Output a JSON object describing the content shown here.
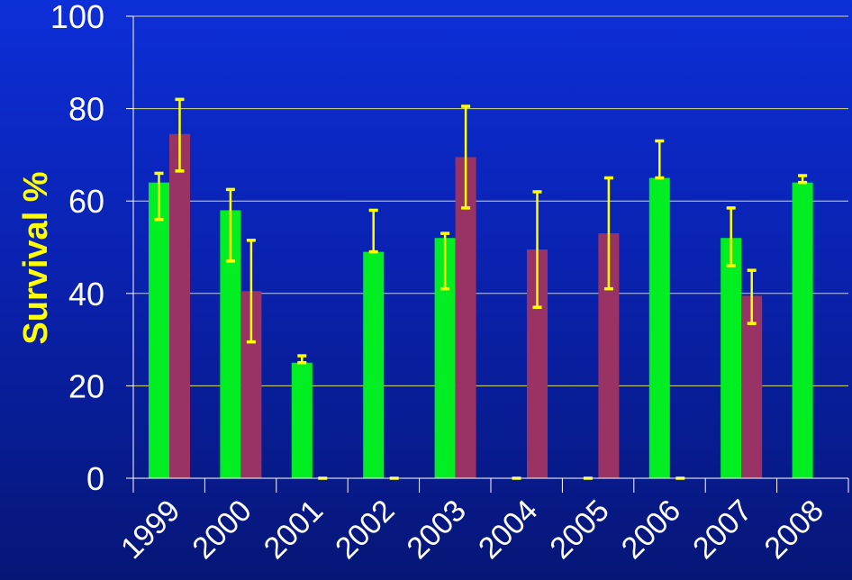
{
  "chart_data": {
    "type": "bar",
    "title": "",
    "xlabel": "",
    "ylabel": "Survival %",
    "ylim": [
      0,
      100
    ],
    "yticks": [
      "0",
      "20",
      "40",
      "60",
      "80",
      "100"
    ],
    "categories": [
      "1999",
      "2000",
      "2001",
      "2002",
      "2003",
      "2004",
      "2005",
      "2006",
      "2007",
      "2008"
    ],
    "series": [
      {
        "color": "#00ee22",
        "values": [
          64,
          58,
          25,
          49,
          52,
          0,
          0,
          65,
          52,
          64
        ],
        "err_low": [
          56,
          47,
          25,
          49,
          41,
          0,
          0,
          65,
          46,
          64
        ],
        "err_high": [
          66,
          62.5,
          26.5,
          58,
          53,
          0,
          0,
          73,
          58.5,
          65.5
        ]
      },
      {
        "color": "#993366",
        "values": [
          74.5,
          40.5,
          0,
          0,
          69.5,
          49.5,
          53,
          0,
          39.5,
          null
        ],
        "err_low": [
          66.5,
          29.5,
          0,
          0,
          58.5,
          37,
          41,
          0,
          33.5,
          null
        ],
        "err_high": [
          82,
          51.5,
          0,
          0,
          80.5,
          62,
          65,
          0,
          45,
          null
        ]
      }
    ],
    "grid": true,
    "legend": "none",
    "colors": {
      "axis": "#ffffff",
      "gridline": "#ffff66",
      "error_bar": "#ffff00",
      "ylabel": "#ffff00",
      "tick_text": "#ffffff"
    }
  }
}
